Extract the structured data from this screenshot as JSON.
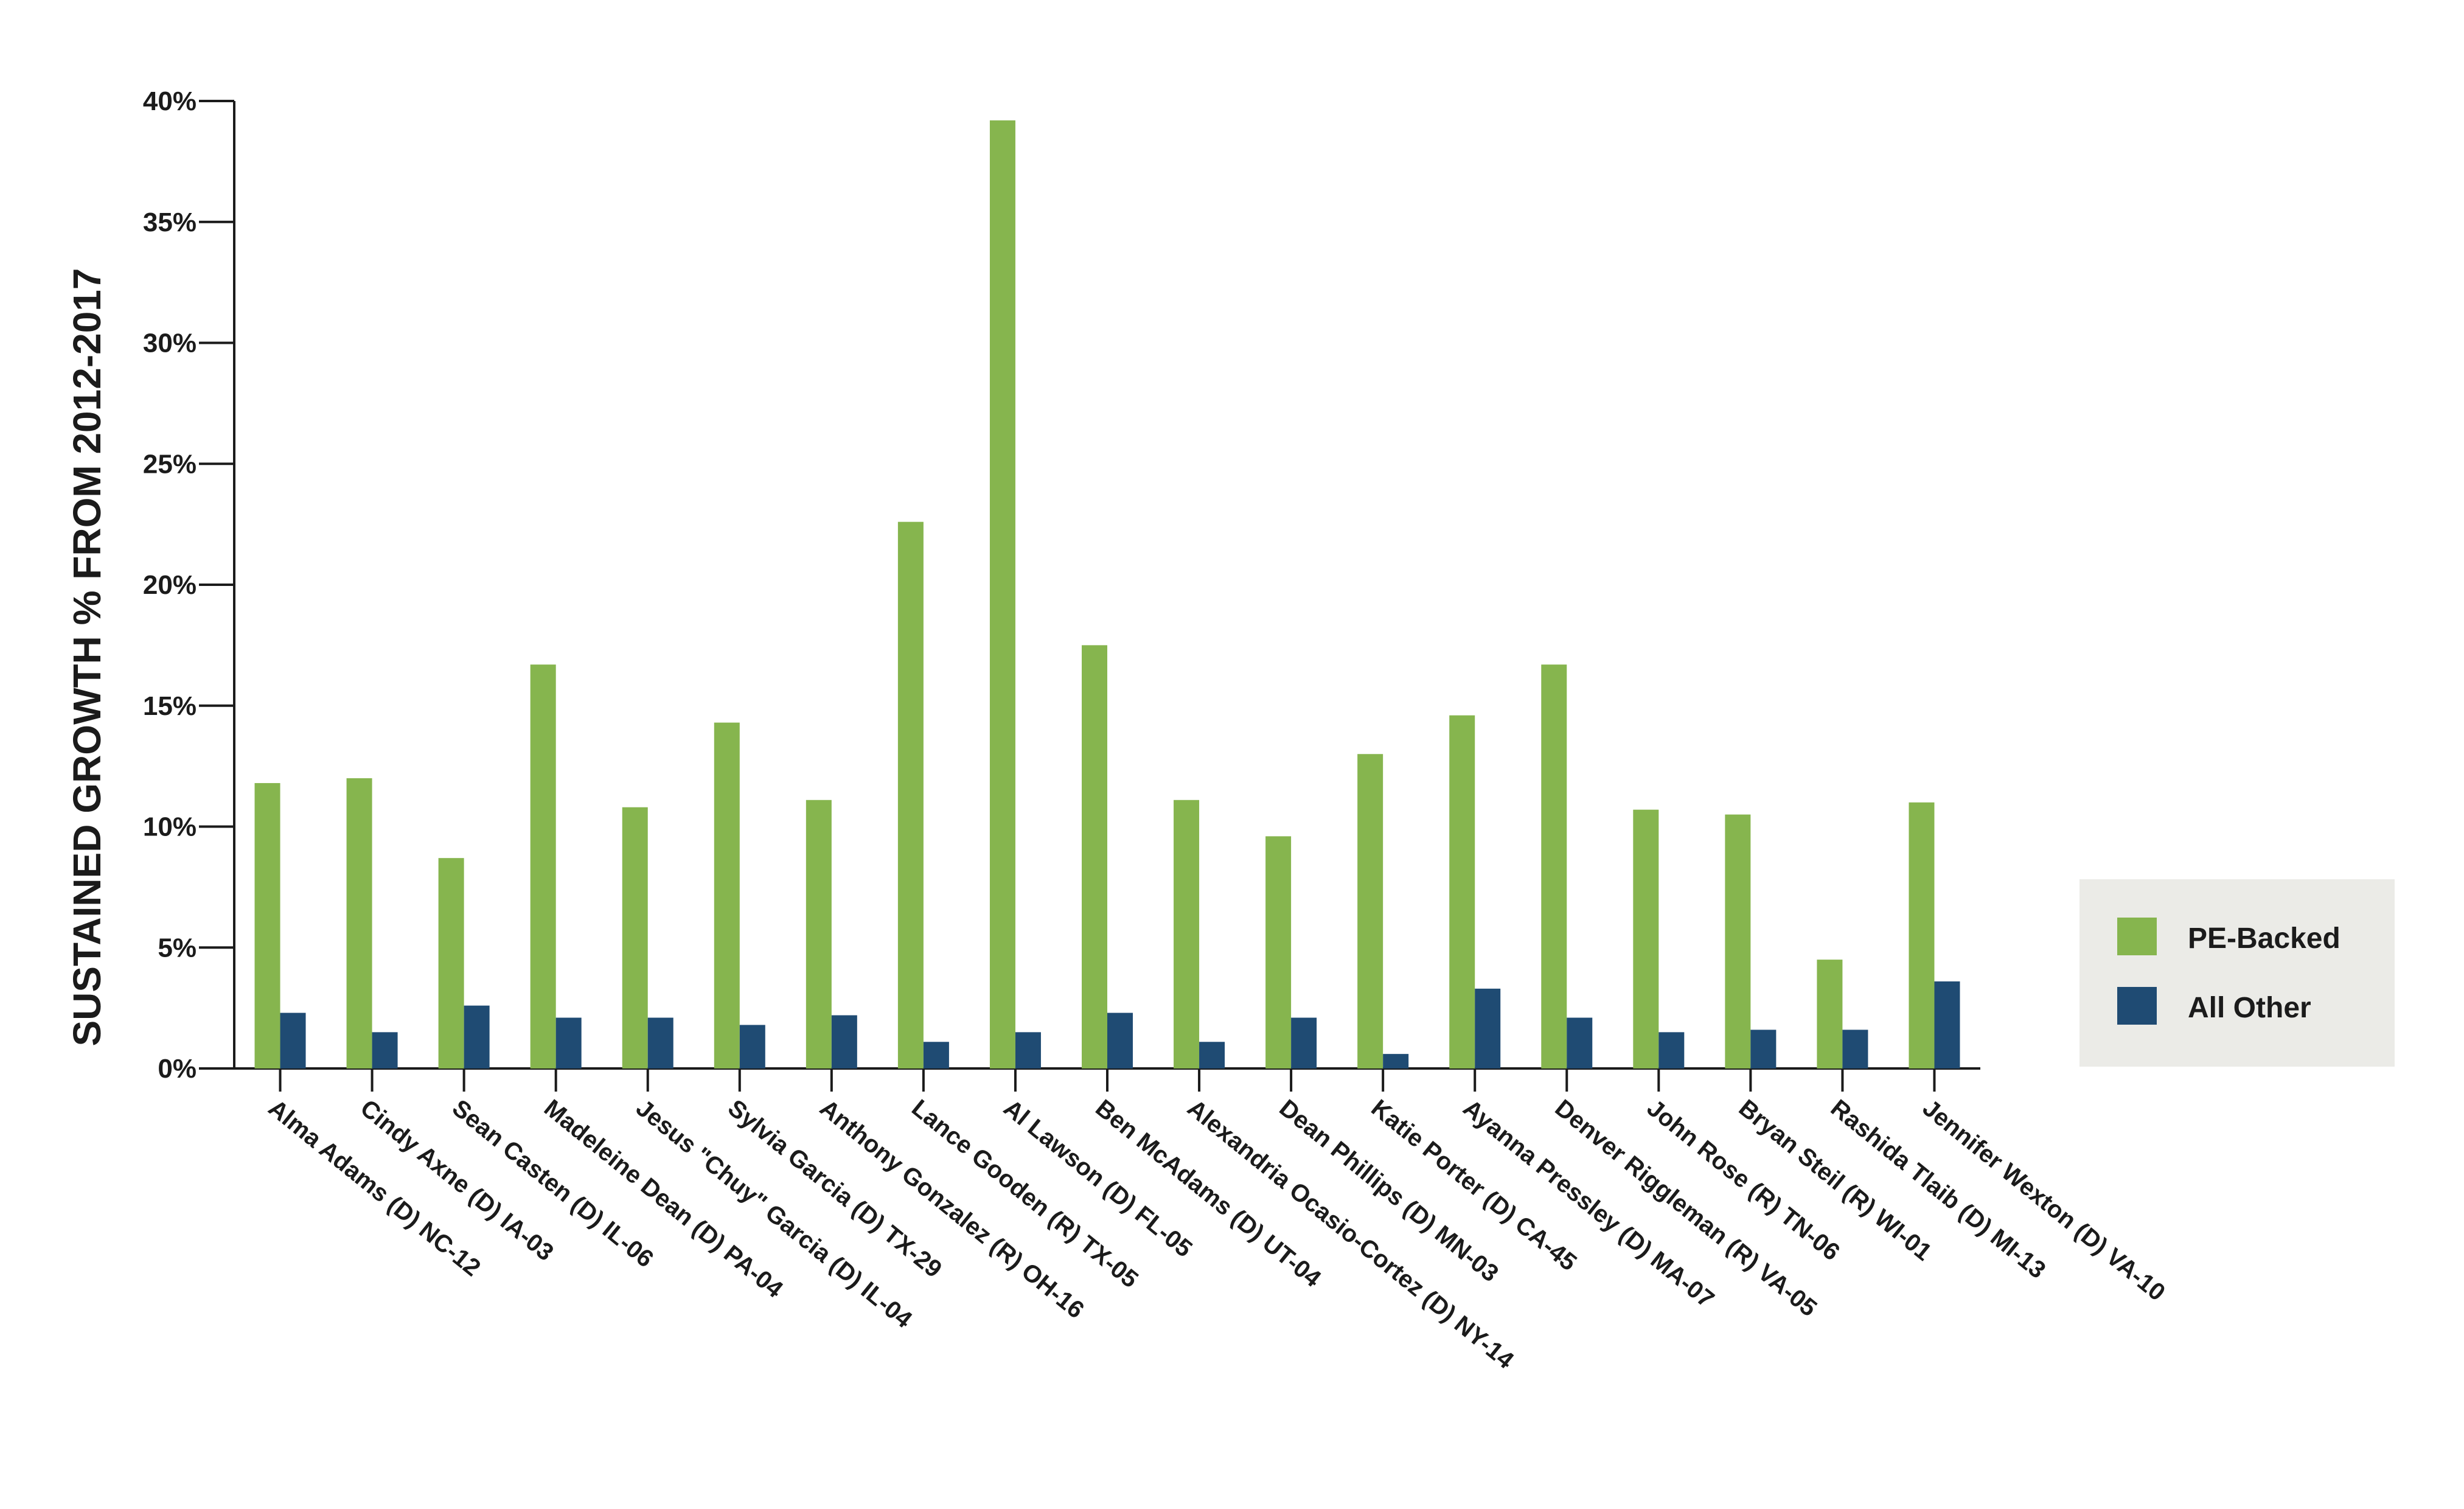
{
  "chart_data": {
    "type": "bar",
    "ylabel": "SUSTAINED GROWTH % FROM 2012-2017",
    "xlabel": "",
    "ylim": [
      0,
      40
    ],
    "y_ticks": [
      "0%",
      "5%",
      "10%",
      "15%",
      "20%",
      "25%",
      "30%",
      "35%",
      "40%"
    ],
    "y_tick_values": [
      0,
      5,
      10,
      15,
      20,
      25,
      30,
      35,
      40
    ],
    "grid": false,
    "legend_position": "right",
    "categories": [
      "Alma Adams (D) NC-12",
      "Cindy Axne (D) IA-03",
      "Sean Casten (D) IL-06",
      "Madeleine Dean (D) PA-04",
      "Jesus \"Chuy\" Garcia (D) IL-04",
      "Sylvia Garcia (D) TX-29",
      "Anthony Gonzalez (R) OH-16",
      "Lance Gooden (R) TX-05",
      "Al Lawson (D) FL-05",
      "Ben McAdams (D) UT-04",
      "Alexandria Ocasio-Cortez (D) NY-14",
      "Dean Phillips (D) MN-03",
      "Katie Porter (D) CA-45",
      "Ayanna Pressley (D) MA-07",
      "Denver Riggleman (R) VA-05",
      "John Rose (R) TN-06",
      "Bryan Steil (R) WI-01",
      "Rashida Tlaib (D) MI-13",
      "Jennifer Wexton (D) VA-10"
    ],
    "series": [
      {
        "name": "PE-Backed",
        "color": "#86b54e",
        "values": [
          11.8,
          12.0,
          8.7,
          16.7,
          10.8,
          14.3,
          11.1,
          22.6,
          39.2,
          17.5,
          11.1,
          9.6,
          13.0,
          14.6,
          16.7,
          10.7,
          10.5,
          4.5,
          11.0
        ]
      },
      {
        "name": "All Other",
        "color": "#1f4b73",
        "values": [
          2.3,
          1.5,
          2.6,
          2.1,
          2.1,
          1.8,
          2.2,
          1.1,
          1.5,
          2.3,
          1.1,
          2.1,
          0.6,
          3.3,
          2.1,
          1.5,
          1.6,
          1.6,
          3.6
        ]
      }
    ]
  },
  "legend": {
    "items": [
      {
        "label": "PE-Backed",
        "color": "#86b54e"
      },
      {
        "label": "All Other",
        "color": "#1f4b73"
      }
    ],
    "background": "#ebebe7"
  }
}
